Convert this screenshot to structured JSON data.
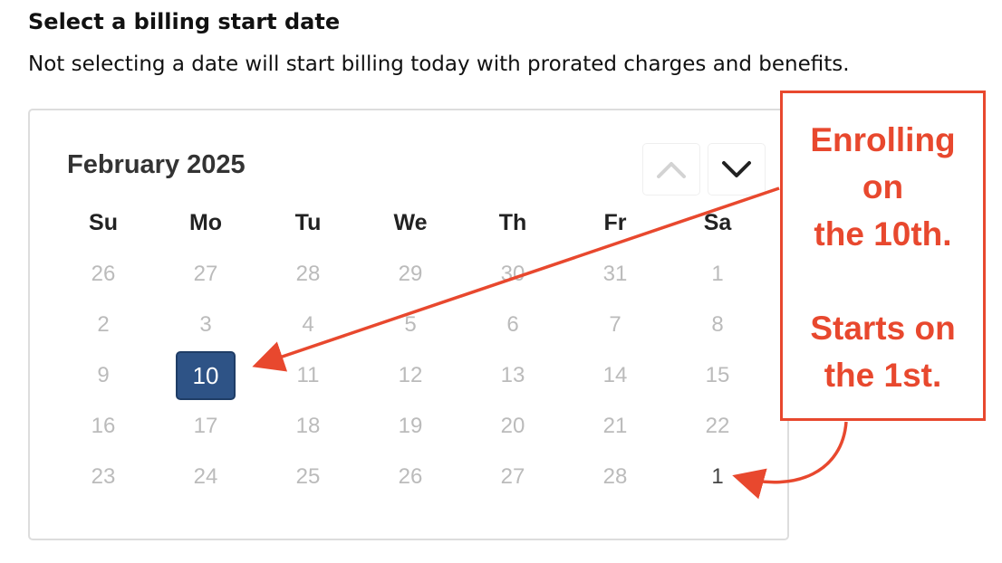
{
  "header": {
    "title": "Select a billing start date",
    "description": "Not selecting a date will start billing today with prorated charges and benefits."
  },
  "calendar": {
    "month_label": "February 2025",
    "prev_icon": "chevron-up-icon",
    "next_icon": "chevron-down-icon",
    "weekdays": [
      "Su",
      "Mo",
      "Tu",
      "We",
      "Th",
      "Fr",
      "Sa"
    ],
    "weeks": [
      [
        "26",
        "27",
        "28",
        "29",
        "30",
        "31",
        "1"
      ],
      [
        "2",
        "3",
        "4",
        "5",
        "6",
        "7",
        "8"
      ],
      [
        "9",
        "10",
        "11",
        "12",
        "13",
        "14",
        "15"
      ],
      [
        "16",
        "17",
        "18",
        "19",
        "20",
        "21",
        "22"
      ],
      [
        "23",
        "24",
        "25",
        "26",
        "27",
        "28",
        "1"
      ]
    ],
    "selected_day": "10",
    "selected_color": "#2e5386"
  },
  "annotation": {
    "line1": "Enrolling",
    "line2": "on",
    "line3": "the 10th.",
    "line4": "Starts on",
    "line5": "the 1st.",
    "color": "#e8482e"
  }
}
